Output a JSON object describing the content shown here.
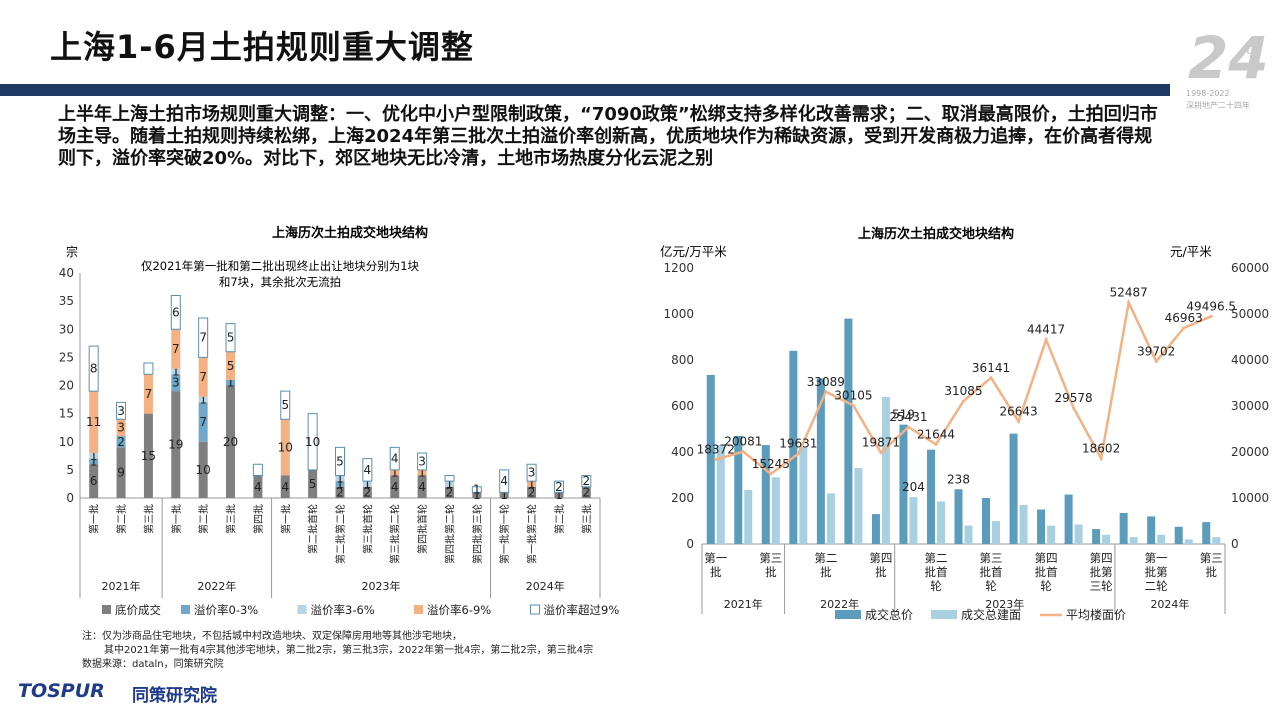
{
  "page": {
    "title": "上海1-6月土拍规则重大调整",
    "summary": "上半年上海土拍市场规则重大调整：一、优化中小户型限制政策，“7090政策”松绑支持多样化改善需求；二、取消最高限价，土拍回归市场主导。随着土拍规则持续松绑，上海2024年第三批次土拍溢价率创新高，优质地块作为稀缺资源，受到开发商极力追捧，在价高者得规则下，溢价率突破20%。对比下，郊区地块无比冷清，土地市场热度分化云泥之别",
    "logo": {
      "number": "24",
      "suffix": "th",
      "years": "1998-2022",
      "tagline": "深耕地产二十四年"
    },
    "footnote": [
      "注：仅为涉商品住宅地块，不包括城中村改造地块、双定保障房用地等其他涉宅地块，",
      "其中2021年第一批有4宗其他涉宅地块，第二批2宗，第三批3宗，2022年第一批4宗，第二批2宗，第三批4宗",
      "数据来源：dataln，同策研究院"
    ],
    "brand": {
      "en": "TOSPUR",
      "cn": "同策研究院"
    }
  },
  "chart_data": [
    {
      "type": "bar",
      "stacked": true,
      "title": "上海历次土拍成交地块结构",
      "ylabel": "宗",
      "ylim": [
        0,
        40
      ],
      "yticks": [
        0,
        5,
        10,
        15,
        20,
        25,
        30,
        35,
        40
      ],
      "annotation": "仅2021年第一批和第二批出现终止出让地块分别为1块\n和7块，其余批次无流拍",
      "categories": [
        "第一批",
        "第二批",
        "第三批",
        "第一批",
        "第二批",
        "第三批",
        "第四批",
        "第一批",
        "第二批首轮",
        "第二批第二轮",
        "第三批首轮",
        "第三批第二轮",
        "第四批首轮",
        "第四批第二轮",
        "第四批第三轮",
        "第一批第一轮",
        "第一批第二轮",
        "第二批",
        "第三批"
      ],
      "groups": [
        {
          "label": "2021年",
          "span": 3
        },
        {
          "label": "2022年",
          "span": 4
        },
        {
          "label": "2023年",
          "span": 8
        },
        {
          "label": "2024年",
          "span": 4
        }
      ],
      "series": [
        {
          "name": "底价成交",
          "color": "#7f7f7f",
          "values": [
            6,
            9,
            15,
            19,
            10,
            20,
            4,
            4,
            5,
            2,
            2,
            4,
            4,
            2,
            1,
            1,
            2,
            1,
            2
          ]
        },
        {
          "name": "溢价率0-3%",
          "color": "#6fa8c8",
          "values": [
            1,
            2,
            0,
            3,
            7,
            1,
            0,
            0,
            0,
            1,
            0,
            0,
            0,
            0,
            0,
            0,
            0,
            0,
            0
          ]
        },
        {
          "name": "溢价率3-6%",
          "color": "#b6d4e3",
          "values": [
            1,
            0,
            0,
            1,
            1,
            0,
            0,
            0,
            0,
            1,
            1,
            0,
            0,
            1,
            0,
            0,
            0,
            0,
            0
          ]
        },
        {
          "name": "溢价率6-9%",
          "color": "#f4b183",
          "values": [
            11,
            3,
            7,
            7,
            7,
            5,
            0,
            10,
            0,
            0,
            0,
            1,
            1,
            0,
            0,
            0,
            1,
            0,
            0
          ]
        },
        {
          "name": "溢价率超过9%",
          "color": "#ffffff",
          "values": [
            8,
            3,
            2,
            6,
            7,
            5,
            2,
            5,
            10,
            5,
            4,
            4,
            3,
            1,
            1,
            4,
            3,
            2,
            2
          ]
        }
      ],
      "labels": [
        [
          "6",
          "1",
          "1",
          "11",
          "8"
        ],
        [
          "9",
          "2",
          "",
          "3",
          "3"
        ],
        [
          "15",
          "",
          "",
          "7",
          ""
        ],
        [
          "19",
          "3",
          "1",
          "7",
          "6"
        ],
        [
          "10",
          "7",
          "1",
          "7",
          "7"
        ],
        [
          "20",
          "1",
          "",
          "5",
          "5"
        ],
        [
          "4",
          "",
          "",
          "",
          ""
        ],
        [
          "4",
          "",
          "",
          "10",
          "5"
        ],
        [
          "5",
          "",
          "",
          "",
          "10"
        ],
        [
          "2",
          "1",
          "1",
          "",
          "5"
        ],
        [
          "2",
          "",
          "1",
          "",
          "4"
        ],
        [
          "4",
          "",
          "",
          "1",
          "4"
        ],
        [
          "4",
          "",
          "",
          "1",
          "3"
        ],
        [
          "2",
          "",
          "1",
          "",
          ""
        ],
        [
          "1",
          "",
          "",
          "",
          "1"
        ],
        [
          "1",
          "",
          "",
          "",
          "4"
        ],
        [
          "2",
          "",
          "",
          "1",
          "3"
        ],
        [
          "1",
          "",
          "",
          "",
          "2"
        ],
        [
          "2",
          "",
          "",
          "",
          "2"
        ]
      ],
      "legend_position": "bottom"
    },
    {
      "type": "bar+line",
      "title": "上海历次土拍成交地块结构",
      "ylabel_left": "亿元/万平米",
      "ylabel_right": "元/平米",
      "ylim_left": [
        0,
        1200
      ],
      "ylim_right": [
        0,
        60000
      ],
      "yticks_left": [
        0,
        200,
        400,
        600,
        800,
        1000,
        1200
      ],
      "yticks_right": [
        0,
        10000,
        20000,
        30000,
        40000,
        50000,
        60000
      ],
      "categories": [
        "第一批",
        "第二批",
        "第三批",
        "第一批",
        "第二批",
        "第三批",
        "第四批",
        "第一批",
        "第二批首轮",
        "第二批第二轮",
        "第三批首轮",
        "第三批第二轮",
        "第四批首轮",
        "第四批第二轮",
        "第四批第三轮",
        "第一批第一轮",
        "第一批第二轮",
        "第二批",
        "第三批"
      ],
      "shown_tick_labels": [
        "第一批",
        "",
        "第三批",
        "",
        "第二批",
        "",
        "第四批",
        "",
        "第二批首轮",
        "",
        "第三批首轮",
        "",
        "第四批首轮",
        "",
        "第四批第三轮",
        "",
        "第一批第二轮",
        "",
        "第三批"
      ],
      "groups": [
        {
          "label": "2021年",
          "span": 3
        },
        {
          "label": "2022年",
          "span": 4
        },
        {
          "label": "2023年",
          "span": 8
        },
        {
          "label": "2024年",
          "span": 4
        }
      ],
      "series": [
        {
          "name": "成交总价",
          "axis": "left",
          "color": "#5b9bbc",
          "values": [
            735,
            470,
            430,
            840,
            720,
            980,
            130,
            519,
            410,
            238,
            200,
            480,
            150,
            215,
            65,
            135,
            120,
            75,
            95
          ]
        },
        {
          "name": "成交总建面",
          "axis": "left",
          "color": "#a9d0e0",
          "values": [
            430,
            235,
            290,
            420,
            220,
            330,
            640,
            204,
            185,
            80,
            100,
            170,
            80,
            85,
            40,
            30,
            40,
            20,
            30
          ]
        },
        {
          "name": "平均楼面价",
          "axis": "right",
          "type": "line",
          "color": "#f4b183",
          "values": [
            18372,
            20081,
            15245,
            19631,
            33089,
            30105,
            19871,
            25431,
            21644,
            31085,
            36141,
            26643,
            44417,
            29578,
            18602,
            52487,
            39702,
            46963,
            49496.5
          ]
        }
      ],
      "bar_labels": [
        {
          "index": 7,
          "series": 0,
          "text": "519"
        },
        {
          "index": 7,
          "series": 1,
          "text": "204"
        },
        {
          "index": 9,
          "series": 0,
          "text": "238"
        }
      ],
      "line_labels": [
        "18372",
        "20081",
        "15245",
        "19631",
        "33089",
        "30105",
        "19871",
        "25431",
        "21644",
        "31085",
        "36141",
        "26643",
        "44417",
        "29578",
        "18602",
        "52487",
        "39702",
        "46963",
        "49496.5"
      ],
      "legend_position": "bottom"
    }
  ]
}
